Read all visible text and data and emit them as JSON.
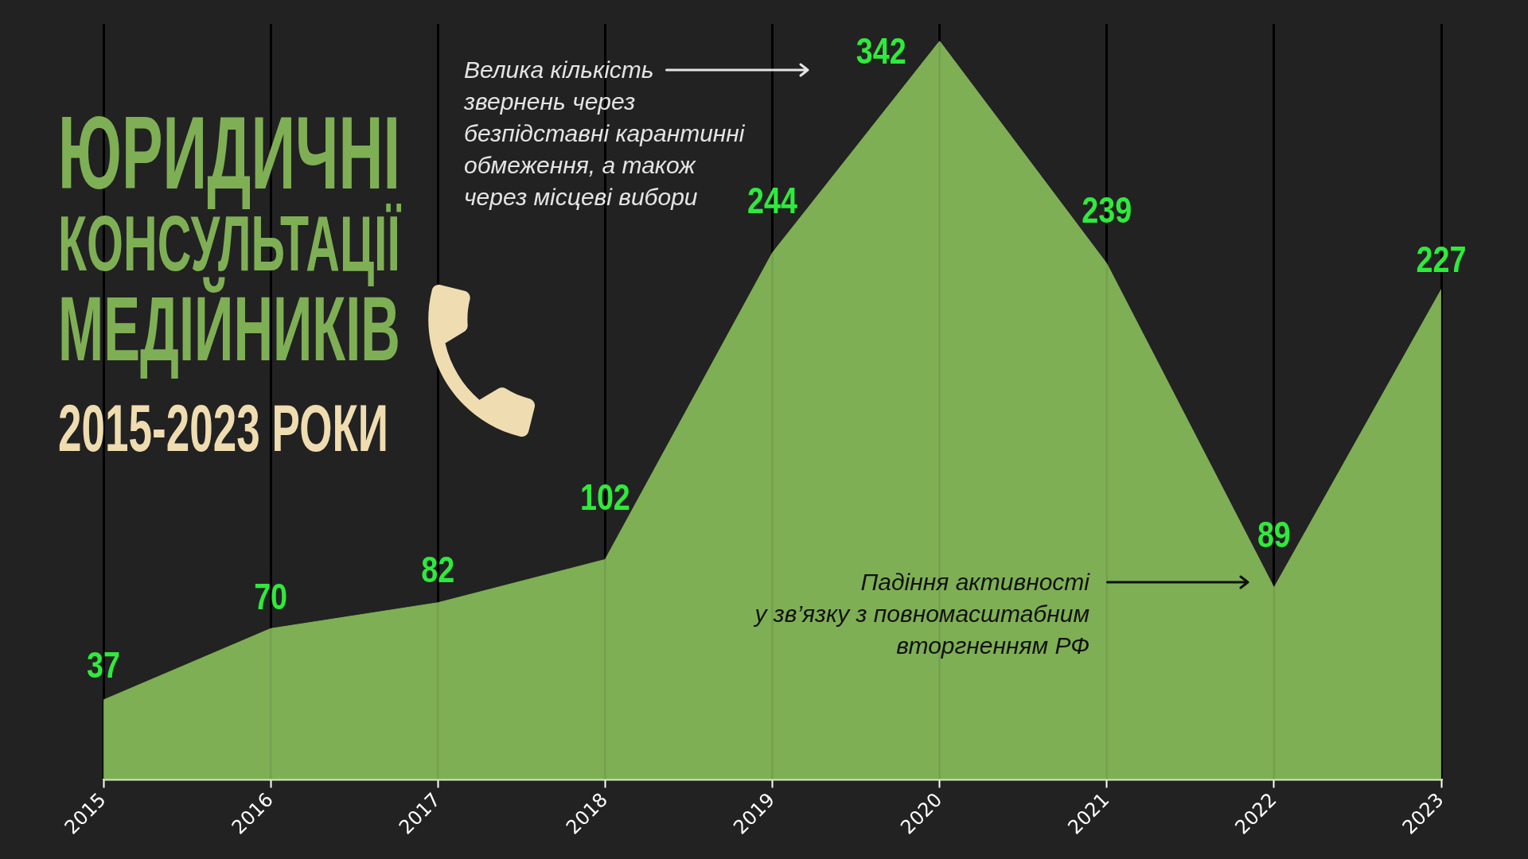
{
  "chart_data": {
    "type": "area",
    "title": "ЮРИДИЧНІ КОНСУЛЬТАЦІЇ МЕДІЙНИКІВ",
    "subtitle": "2015-2023 РОКИ",
    "categories": [
      "2015",
      "2016",
      "2017",
      "2018",
      "2019",
      "2020",
      "2021",
      "2022",
      "2023"
    ],
    "values": [
      37,
      70,
      82,
      102,
      244,
      342,
      239,
      89,
      227
    ],
    "color": "#7faf55",
    "ylim": [
      0,
      350
    ],
    "grid": "x",
    "data_labels": true,
    "tick_labels": "x",
    "annotations": [
      "Велика кількість\nзвернень через\nбезпідставні карантинні\nобмеження, а також\nчерез місцеві вибори",
      "Падіння активності\nу зв’язку з повномасштабним\nвторгненням РФ"
    ]
  }
}
